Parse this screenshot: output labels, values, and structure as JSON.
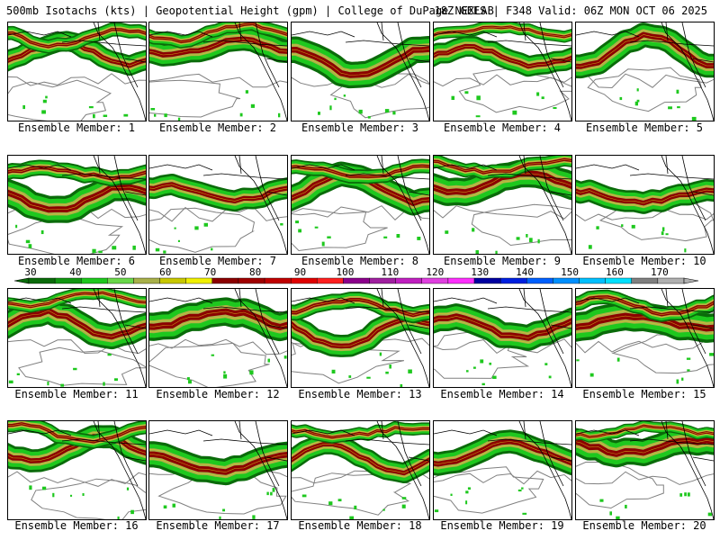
{
  "header": {
    "left": "500mb Isotachs (kts) | Geopotential Height (gpm) | College of DuPage NEXLAB",
    "right": "18Z GEFS | F348 Valid: 06Z MON OCT 06 2025"
  },
  "panels": [
    {
      "label": "Ensemble Member: 1"
    },
    {
      "label": "Ensemble Member: 2"
    },
    {
      "label": "Ensemble Member: 3"
    },
    {
      "label": "Ensemble Member: 4"
    },
    {
      "label": "Ensemble Member: 5"
    },
    {
      "label": "Ensemble Member: 6"
    },
    {
      "label": "Ensemble Member: 7"
    },
    {
      "label": "Ensemble Member: 8"
    },
    {
      "label": "Ensemble Member: 9"
    },
    {
      "label": "Ensemble Member: 10"
    },
    {
      "label": "Ensemble Member: 11"
    },
    {
      "label": "Ensemble Member: 12"
    },
    {
      "label": "Ensemble Member: 13"
    },
    {
      "label": "Ensemble Member: 14"
    },
    {
      "label": "Ensemble Member: 15"
    },
    {
      "label": "Ensemble Member: 16"
    },
    {
      "label": "Ensemble Member: 17"
    },
    {
      "label": "Ensemble Member: 18"
    },
    {
      "label": "Ensemble Member: 19"
    },
    {
      "label": "Ensemble Member: 20"
    }
  ],
  "colorbar": {
    "ticks": [
      "30",
      "40",
      "50",
      "60",
      "70",
      "80",
      "90",
      "100",
      "110",
      "120",
      "130",
      "140",
      "150",
      "160",
      "170"
    ],
    "colors": [
      "#0a6b0a",
      "#129612",
      "#1ec81e",
      "#6ad84a",
      "#a8b04a",
      "#c8c800",
      "#f0f000",
      "#8b0000",
      "#a00000",
      "#c00000",
      "#e00000",
      "#ff2020",
      "#8b008b",
      "#a020a0",
      "#c020c0",
      "#e040e0",
      "#ff30ff",
      "#0000a0",
      "#0020e0",
      "#0060ff",
      "#0090ff",
      "#00c0ff",
      "#00e0ff",
      "#808080",
      "#b0b0b0"
    ]
  },
  "colors": {
    "jet_core": "#8b0000",
    "jet_mid": "#a8b04a",
    "jet_edge": "#1ec81e",
    "jet_outer": "#0a6b0a",
    "height": "#808080",
    "coast": "#000000"
  }
}
